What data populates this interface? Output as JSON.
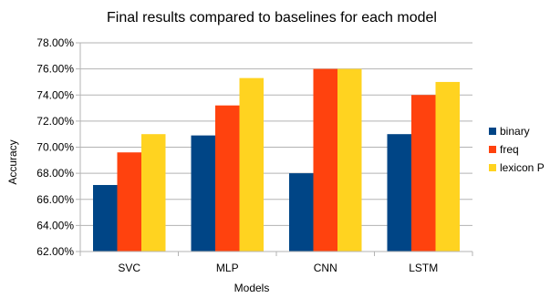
{
  "chart_data": {
    "type": "bar",
    "title": "Final results compared to baselines for each model",
    "xlabel": "Models",
    "ylabel": "Accuracy",
    "categories": [
      "SVC",
      "MLP",
      "CNN",
      "LSTM"
    ],
    "ylim": [
      62,
      78
    ],
    "yticks": [
      62,
      64,
      66,
      68,
      70,
      72,
      74,
      76,
      78
    ],
    "ytick_format": "percent-2dp",
    "grid": true,
    "legend_position": "right",
    "series": [
      {
        "name": "binary",
        "color": "#004586",
        "values": [
          67.1,
          70.9,
          68.0,
          71.0
        ]
      },
      {
        "name": "freq",
        "color": "#ff420e",
        "values": [
          69.6,
          73.2,
          76.0,
          74.0
        ]
      },
      {
        "name": "lexicon P",
        "color": "#ffd320",
        "values": [
          71.0,
          75.3,
          76.0,
          75.0
        ]
      }
    ]
  }
}
